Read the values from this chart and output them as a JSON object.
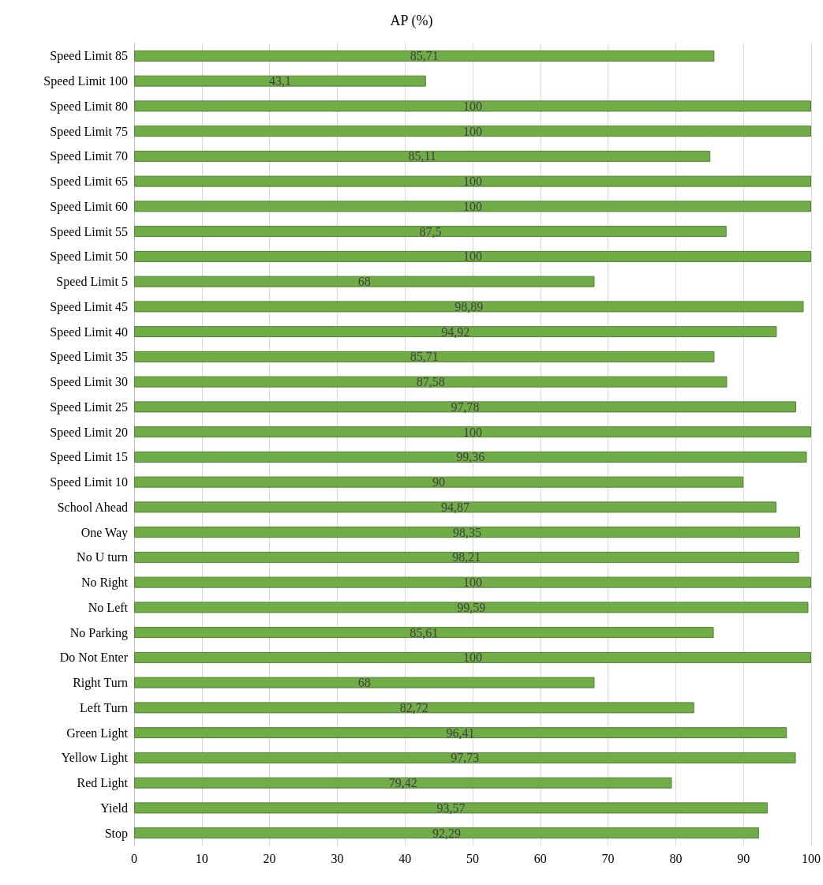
{
  "chart_data": {
    "type": "bar",
    "orientation": "horizontal",
    "title": "AP (%)",
    "categories": [
      "Speed Limit 85",
      "Speed Limit 100",
      "Speed Limit 80",
      "Speed Limit 75",
      "Speed Limit 70",
      "Speed Limit 65",
      "Speed Limit 60",
      "Speed Limit 55",
      "Speed Limit 50",
      "Speed Limit 5",
      "Speed Limit 45",
      "Speed Limit 40",
      "Speed Limit 35",
      "Speed Limit 30",
      "Speed Limit 25",
      "Speed Limit 20",
      "Speed Limit 15",
      "Speed Limit 10",
      "School Ahead",
      "One Way",
      "No U turn",
      "No Right",
      "No Left",
      "No Parking",
      "Do Not Enter",
      "Right Turn",
      "Left Turn",
      "Green Light",
      "Yellow Light",
      "Red Light",
      "Yield",
      "Stop"
    ],
    "values": [
      85.71,
      43.1,
      100,
      100,
      85.11,
      100,
      100,
      87.5,
      100,
      68,
      98.89,
      94.92,
      85.71,
      87.58,
      97.78,
      100,
      99.36,
      90,
      94.87,
      98.35,
      98.21,
      100,
      99.59,
      85.61,
      100,
      68,
      82.72,
      96.41,
      97.73,
      79.42,
      93.57,
      92.29
    ],
    "value_labels": [
      "85,71",
      "43,1",
      "100",
      "100",
      "85,11",
      "100",
      "100",
      "87,5",
      "100",
      "68",
      "98,89",
      "94,92",
      "85,71",
      "87,58",
      "97,78",
      "100",
      "99,36",
      "90",
      "94,87",
      "98,35",
      "98,21",
      "100",
      "99,59",
      "85,61",
      "100",
      "68",
      "82,72",
      "96,41",
      "97,73",
      "79,42",
      "93,57",
      "92,29"
    ],
    "color": "#70ad47",
    "xlim": [
      0,
      100
    ],
    "xticks": [
      0,
      10,
      20,
      30,
      40,
      50,
      60,
      70,
      80,
      90,
      100
    ],
    "grid": "x"
  }
}
